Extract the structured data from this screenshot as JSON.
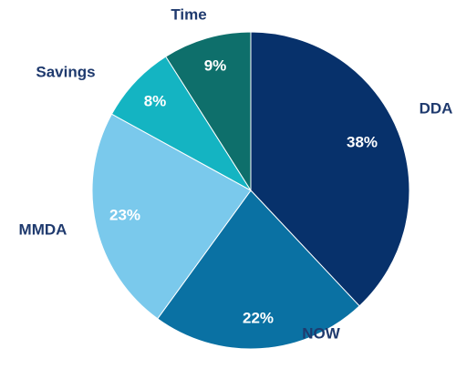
{
  "chart_data": {
    "type": "pie",
    "categories": [
      "DDA",
      "NOW",
      "MMDA",
      "Savings",
      "Time"
    ],
    "values": [
      38,
      22,
      23,
      8,
      9
    ],
    "value_labels": [
      "38%",
      "22%",
      "23%",
      "8%",
      "9%"
    ],
    "colors": [
      "#07316b",
      "#0a71a3",
      "#7ac9ec",
      "#14b4c2",
      "#0e6f6b"
    ]
  }
}
